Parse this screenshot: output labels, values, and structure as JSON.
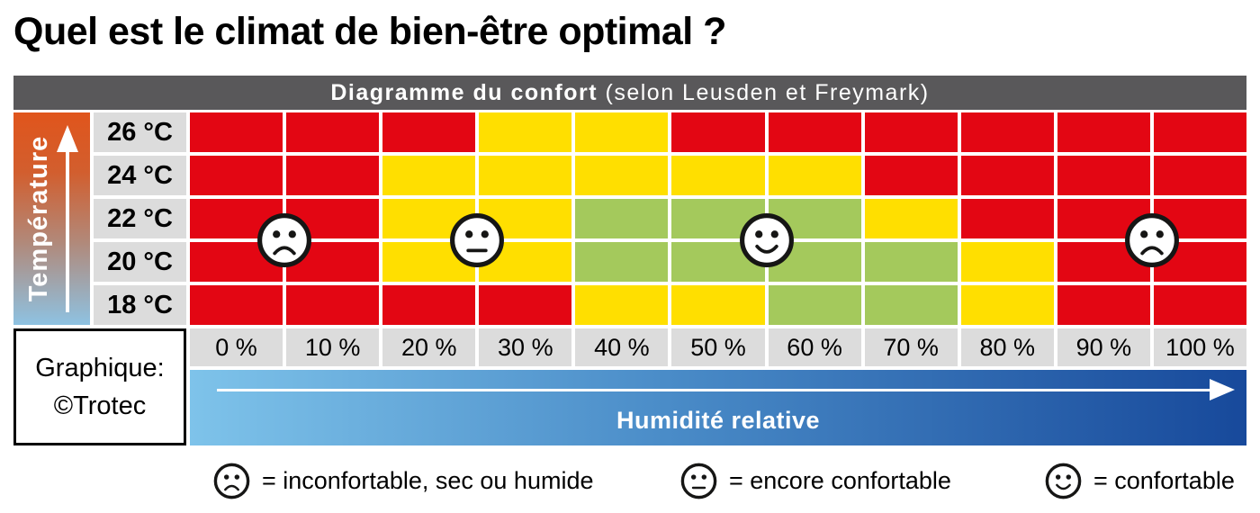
{
  "page_title": "Quel est le climat de bien-être optimal ?",
  "header": {
    "title_bold": "Diagramme du confort",
    "title_regular": " (selon Leusden et Freymark)"
  },
  "temperature_axis": {
    "label": "Température",
    "ticks": [
      "26 °C",
      "24 °C",
      "22 °C",
      "20 °C",
      "18 °C"
    ]
  },
  "humidity_axis": {
    "label": "Humidité relative",
    "ticks": [
      "0 %",
      "10 %",
      "20 %",
      "30 %",
      "40 %",
      "50 %",
      "60 %",
      "70 %",
      "80 %",
      "90 %",
      "100 %"
    ]
  },
  "credit": {
    "line1": "Graphique:",
    "line2": "©Trotec"
  },
  "legend": {
    "items": [
      {
        "icon": "sad-face",
        "label": "= inconfortable, sec ou humide"
      },
      {
        "icon": "neutral-face",
        "label": "= encore confortable"
      },
      {
        "icon": "happy-face",
        "label": "= confortable"
      }
    ]
  },
  "colors": {
    "red": "#e30613",
    "yellow": "#ffdf00",
    "green": "#a4c95c",
    "header_bg": "#59585a",
    "tick_bg": "#dcdcdc",
    "humidity_gradient_start": "#7ec3ea",
    "humidity_gradient_end": "#17499b",
    "temp_gradient_top": "#e0551c",
    "temp_gradient_mid": "#b08a7c",
    "temp_gradient_bottom": "#8ec2e2"
  },
  "chart_data": {
    "type": "heatmap",
    "title": "Diagramme du confort (selon Leusden et Freymark)",
    "xlabel": "Humidité relative",
    "ylabel": "Température",
    "x_categories": [
      "0 %",
      "10 %",
      "20 %",
      "30 %",
      "40 %",
      "50 %",
      "60 %",
      "70 %",
      "80 %",
      "90 %",
      "100 %"
    ],
    "y_categories": [
      "26 °C",
      "24 °C",
      "22 °C",
      "20 °C",
      "18 °C"
    ],
    "value_meaning": {
      "red": "inconfortable, sec ou humide",
      "yellow": "encore confortable",
      "green": "confortable"
    },
    "cells": [
      [
        "red",
        "red",
        "red",
        "yellow",
        "yellow",
        "red",
        "red",
        "red",
        "red",
        "red",
        "red"
      ],
      [
        "red",
        "red",
        "yellow",
        "yellow",
        "yellow",
        "yellow",
        "yellow",
        "red",
        "red",
        "red",
        "red"
      ],
      [
        "red",
        "red",
        "yellow",
        "yellow",
        "green",
        "green",
        "green",
        "yellow",
        "red",
        "red",
        "red"
      ],
      [
        "red",
        "red",
        "yellow",
        "yellow",
        "green",
        "green",
        "green",
        "green",
        "yellow",
        "red",
        "red"
      ],
      [
        "red",
        "red",
        "red",
        "red",
        "yellow",
        "yellow",
        "green",
        "green",
        "yellow",
        "red",
        "red"
      ]
    ],
    "faces": [
      {
        "expression": "sad",
        "humidity_boundary_pct": 5,
        "col_boundary": 1,
        "row_boundary": 3,
        "temp_span": "20–22 °C"
      },
      {
        "expression": "neutral",
        "humidity_boundary_pct": 25,
        "col_boundary": 3,
        "row_boundary": 3,
        "temp_span": "20–22 °C"
      },
      {
        "expression": "happy",
        "humidity_boundary_pct": 55,
        "col_boundary": 6,
        "row_boundary": 3,
        "temp_span": "20–22 °C"
      },
      {
        "expression": "sad",
        "humidity_boundary_pct": 95,
        "col_boundary": 10,
        "row_boundary": 3,
        "temp_span": "20–22 °C"
      }
    ]
  }
}
